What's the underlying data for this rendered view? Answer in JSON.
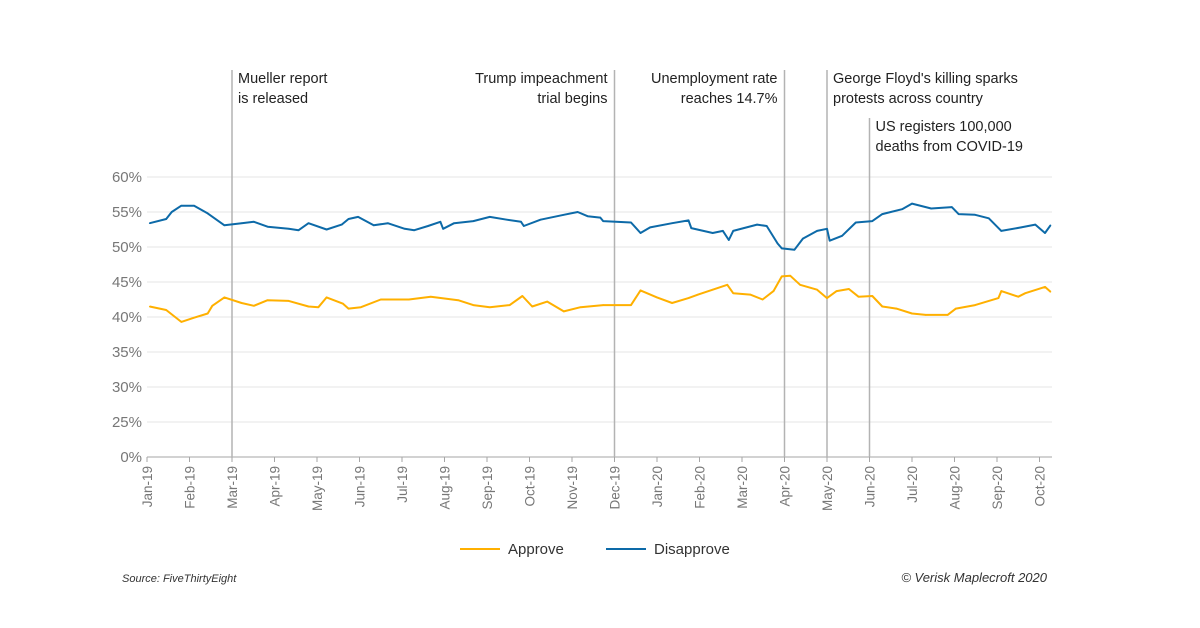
{
  "chart_data": {
    "type": "line",
    "title": "",
    "xlabel": "",
    "ylabel": "",
    "y_ticks": [
      "0%",
      "25%",
      "30%",
      "35%",
      "40%",
      "45%",
      "50%",
      "55%",
      "60%"
    ],
    "y_tick_values": [
      0,
      25,
      30,
      35,
      40,
      45,
      50,
      55,
      60
    ],
    "y_axis_broken_between": [
      0,
      25
    ],
    "x_ticks": [
      "Jan-19",
      "Feb-19",
      "Mar-19",
      "Apr-19",
      "May-19",
      "Jun-19",
      "Jul-19",
      "Aug-19",
      "Sep-19",
      "Oct-19",
      "Nov-19",
      "Dec-19",
      "Jan-20",
      "Feb-20",
      "Mar-20",
      "Apr-20",
      "May-20",
      "Jun-20",
      "Jul-20",
      "Aug-20",
      "Sep-20",
      "Oct-20"
    ],
    "grid": "horizontal",
    "legend_position": "bottom",
    "series": [
      {
        "name": "Approve",
        "color": "#FFB000",
        "points": [
          [
            "2019-01-03",
            41.5
          ],
          [
            "2019-01-15",
            41.0
          ],
          [
            "2019-01-26",
            39.3
          ],
          [
            "2019-02-04",
            39.9
          ],
          [
            "2019-02-13",
            40.5
          ],
          [
            "2019-02-16",
            41.6
          ],
          [
            "2019-02-24",
            42.8
          ],
          [
            "2019-03-08",
            42.0
          ],
          [
            "2019-03-17",
            41.6
          ],
          [
            "2019-03-27",
            42.4
          ],
          [
            "2019-04-11",
            42.3
          ],
          [
            "2019-04-25",
            41.5
          ],
          [
            "2019-05-02",
            41.4
          ],
          [
            "2019-05-08",
            42.8
          ],
          [
            "2019-05-20",
            41.9
          ],
          [
            "2019-05-24",
            41.2
          ],
          [
            "2019-06-02",
            41.4
          ],
          [
            "2019-06-16",
            42.5
          ],
          [
            "2019-07-06",
            42.5
          ],
          [
            "2019-07-22",
            42.9
          ],
          [
            "2019-08-11",
            42.4
          ],
          [
            "2019-08-22",
            41.7
          ],
          [
            "2019-09-03",
            41.4
          ],
          [
            "2019-09-17",
            41.7
          ],
          [
            "2019-09-26",
            43.0
          ],
          [
            "2019-10-03",
            41.5
          ],
          [
            "2019-10-14",
            42.2
          ],
          [
            "2019-10-26",
            40.8
          ],
          [
            "2019-11-07",
            41.4
          ],
          [
            "2019-11-23",
            41.7
          ],
          [
            "2019-12-13",
            41.7
          ],
          [
            "2019-12-20",
            43.8
          ],
          [
            "2020-01-01",
            42.8
          ],
          [
            "2020-01-12",
            42.0
          ],
          [
            "2020-01-24",
            42.7
          ],
          [
            "2020-01-31",
            43.2
          ],
          [
            "2020-02-10",
            43.9
          ],
          [
            "2020-02-20",
            44.6
          ],
          [
            "2020-02-24",
            43.4
          ],
          [
            "2020-03-07",
            43.2
          ],
          [
            "2020-03-16",
            42.5
          ],
          [
            "2020-03-24",
            43.7
          ],
          [
            "2020-03-30",
            45.8
          ],
          [
            "2020-04-05",
            45.9
          ],
          [
            "2020-04-12",
            44.6
          ],
          [
            "2020-04-24",
            43.9
          ],
          [
            "2020-05-01",
            42.7
          ],
          [
            "2020-05-08",
            43.7
          ],
          [
            "2020-05-17",
            44.0
          ],
          [
            "2020-05-24",
            42.9
          ],
          [
            "2020-06-03",
            43.0
          ],
          [
            "2020-06-10",
            41.5
          ],
          [
            "2020-06-20",
            41.2
          ],
          [
            "2020-07-01",
            40.5
          ],
          [
            "2020-07-11",
            40.3
          ],
          [
            "2020-07-27",
            40.3
          ],
          [
            "2020-08-02",
            41.2
          ],
          [
            "2020-08-16",
            41.7
          ],
          [
            "2020-09-02",
            42.7
          ],
          [
            "2020-09-04",
            43.7
          ],
          [
            "2020-09-16",
            42.9
          ],
          [
            "2020-09-21",
            43.4
          ],
          [
            "2020-10-05",
            44.3
          ],
          [
            "2020-10-09",
            43.6
          ]
        ]
      },
      {
        "name": "Disapprove",
        "color": "#0D6AA8",
        "points": [
          [
            "2019-01-03",
            53.4
          ],
          [
            "2019-01-15",
            54.0
          ],
          [
            "2019-01-19",
            55.0
          ],
          [
            "2019-01-26",
            55.9
          ],
          [
            "2019-02-04",
            55.9
          ],
          [
            "2019-02-13",
            54.8
          ],
          [
            "2019-02-24",
            53.1
          ],
          [
            "2019-03-08",
            53.4
          ],
          [
            "2019-03-17",
            53.6
          ],
          [
            "2019-03-27",
            52.9
          ],
          [
            "2019-04-11",
            52.6
          ],
          [
            "2019-04-18",
            52.4
          ],
          [
            "2019-04-25",
            53.4
          ],
          [
            "2019-05-08",
            52.5
          ],
          [
            "2019-05-19",
            53.2
          ],
          [
            "2019-05-24",
            54.0
          ],
          [
            "2019-05-31",
            54.3
          ],
          [
            "2019-06-11",
            53.1
          ],
          [
            "2019-06-21",
            53.4
          ],
          [
            "2019-07-03",
            52.6
          ],
          [
            "2019-07-10",
            52.4
          ],
          [
            "2019-07-20",
            53.0
          ],
          [
            "2019-07-29",
            53.6
          ],
          [
            "2019-07-31",
            52.6
          ],
          [
            "2019-08-08",
            53.4
          ],
          [
            "2019-08-22",
            53.7
          ],
          [
            "2019-09-03",
            54.3
          ],
          [
            "2019-09-15",
            53.9
          ],
          [
            "2019-09-25",
            53.6
          ],
          [
            "2019-09-27",
            53.0
          ],
          [
            "2019-10-09",
            53.9
          ],
          [
            "2019-10-26",
            54.6
          ],
          [
            "2019-11-05",
            55.0
          ],
          [
            "2019-11-12",
            54.4
          ],
          [
            "2019-11-21",
            54.2
          ],
          [
            "2019-11-23",
            53.7
          ],
          [
            "2019-12-13",
            53.5
          ],
          [
            "2019-12-20",
            52.0
          ],
          [
            "2019-12-27",
            52.8
          ],
          [
            "2020-01-12",
            53.4
          ],
          [
            "2020-01-24",
            53.8
          ],
          [
            "2020-01-26",
            52.7
          ],
          [
            "2020-02-10",
            52.0
          ],
          [
            "2020-02-17",
            52.3
          ],
          [
            "2020-02-21",
            51.0
          ],
          [
            "2020-02-24",
            52.3
          ],
          [
            "2020-03-12",
            53.2
          ],
          [
            "2020-03-19",
            53.0
          ],
          [
            "2020-03-27",
            50.5
          ],
          [
            "2020-03-30",
            49.8
          ],
          [
            "2020-04-08",
            49.6
          ],
          [
            "2020-04-14",
            51.2
          ],
          [
            "2020-04-24",
            52.3
          ],
          [
            "2020-05-01",
            52.6
          ],
          [
            "2020-05-03",
            50.9
          ],
          [
            "2020-05-12",
            51.6
          ],
          [
            "2020-05-22",
            53.5
          ],
          [
            "2020-06-03",
            53.7
          ],
          [
            "2020-06-10",
            54.7
          ],
          [
            "2020-06-24",
            55.4
          ],
          [
            "2020-07-01",
            56.2
          ],
          [
            "2020-07-15",
            55.5
          ],
          [
            "2020-07-30",
            55.7
          ],
          [
            "2020-08-04",
            54.7
          ],
          [
            "2020-08-16",
            54.6
          ],
          [
            "2020-08-26",
            54.1
          ],
          [
            "2020-09-04",
            52.3
          ],
          [
            "2020-09-18",
            52.8
          ],
          [
            "2020-09-28",
            53.2
          ],
          [
            "2020-10-05",
            52.0
          ],
          [
            "2020-10-09",
            53.1
          ]
        ]
      }
    ],
    "annotations": [
      {
        "date": "2019-03",
        "lines": [
          "Mueller report",
          "is released"
        ],
        "align": "right-of-line"
      },
      {
        "date": "2019-12",
        "lines": [
          "Trump impeachment",
          "trial begins"
        ],
        "align": "left-of-line"
      },
      {
        "date": "2020-04",
        "lines": [
          "Unemployment rate",
          "reaches 14.7%"
        ],
        "align": "left-of-line"
      },
      {
        "date": "2020-05",
        "lines": [
          "George Floyd's killing sparks",
          "protests across country"
        ],
        "align": "right-of-line"
      },
      {
        "date": "2020-06",
        "lines": [
          "US registers 100,000",
          "deaths from COVID-19"
        ],
        "align": "right-of-line"
      }
    ]
  },
  "footer": {
    "source": "Source:  FiveThirtyEight",
    "copyright": "© Verisk Maplecroft 2020"
  }
}
